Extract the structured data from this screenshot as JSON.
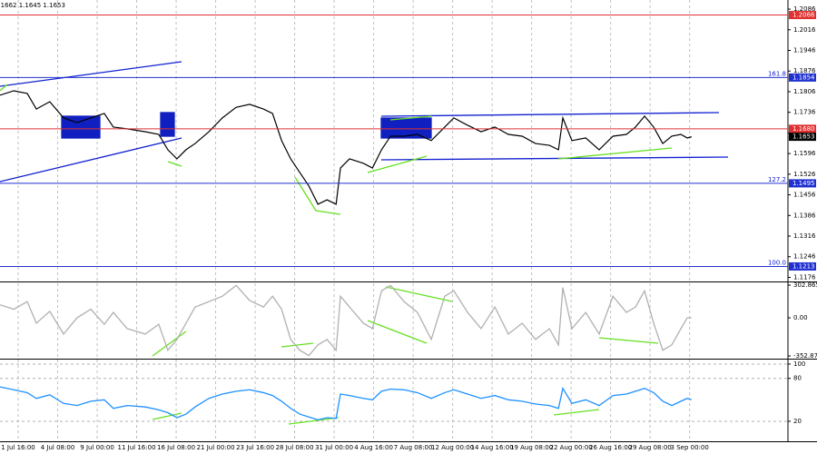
{
  "chart_data": [
    {
      "type": "line",
      "title": "1.1662 1.1645 1.1653",
      "x": [
        -0.46,
        -0.11,
        0.23,
        0.46,
        0.8,
        1.15,
        1.49,
        1.84,
        2.18,
        2.41,
        2.76,
        3.22,
        3.56,
        3.79,
        4.02,
        4.25,
        4.48,
        4.83,
        5.17,
        5.52,
        5.86,
        6.21,
        6.44,
        6.67,
        6.9,
        7.13,
        7.36,
        7.59,
        7.82,
        8.05,
        8.16,
        8.39,
        8.74,
        8.97,
        9.2,
        9.43,
        9.77,
        10.11,
        10.46,
        10.8,
        11.03,
        11.38,
        11.72,
        12.07,
        12.41,
        12.76,
        13.1,
        13.45,
        13.68,
        13.79,
        14.02,
        14.37,
        14.71,
        15.06,
        15.4,
        15.63,
        15.86,
        16.09,
        16.32,
        16.55,
        16.78,
        16.94,
        17.05
      ],
      "series": [
        {
          "color": "#000000",
          "values": [
            1.1794,
            1.1809,
            1.18,
            1.1747,
            1.1772,
            1.1717,
            1.1701,
            1.1717,
            1.1732,
            1.1686,
            1.168,
            1.167,
            1.1661,
            1.1609,
            1.1578,
            1.1609,
            1.163,
            1.167,
            1.1717,
            1.1753,
            1.1763,
            1.1747,
            1.1732,
            1.164,
            1.1578,
            1.1532,
            1.1486,
            1.1424,
            1.1439,
            1.1424,
            1.1547,
            1.1578,
            1.1563,
            1.1547,
            1.1609,
            1.1655,
            1.1655,
            1.1661,
            1.164,
            1.1686,
            1.1717,
            1.1692,
            1.167,
            1.1686,
            1.1661,
            1.1655,
            1.163,
            1.1624,
            1.1609,
            1.1717,
            1.164,
            1.1649,
            1.1609,
            1.1655,
            1.1661,
            1.1686,
            1.1723,
            1.1686,
            1.163,
            1.1655,
            1.1661,
            1.1649,
            1.1653
          ]
        }
      ],
      "xlim": [
        -0.46,
        19.49
      ],
      "ylim": [
        1.1162,
        1.2117
      ],
      "yticks": [
        1.2086,
        1.2016,
        1.1946,
        1.1876,
        1.1806,
        1.1736,
        1.1666,
        1.1596,
        1.1526,
        1.1456,
        1.1386,
        1.1316,
        1.1246,
        1.1176
      ],
      "levels": [
        {
          "value": 1.2066,
          "label": "1.2066",
          "color": "#e03030"
        },
        {
          "value": 1.1854,
          "label": "1.1854",
          "color": "#2030d0",
          "fib_label": "161.8"
        },
        {
          "value": 1.168,
          "label": "1.1680",
          "color": "#e03030"
        },
        {
          "value": 1.1653,
          "label": "1.1653",
          "color": "#000000"
        },
        {
          "value": 1.1495,
          "label": "1.1495",
          "color": "#2030d0",
          "fib_label": "127.2"
        },
        {
          "value": 1.1213,
          "label": "1.1213",
          "color": "#2030d0",
          "fib_label": "100.0"
        }
      ]
    },
    {
      "type": "line",
      "x": [
        -0.46,
        -0.11,
        0.23,
        0.46,
        0.8,
        1.15,
        1.49,
        1.84,
        2.18,
        2.41,
        2.76,
        3.22,
        3.56,
        3.79,
        4.02,
        4.25,
        4.48,
        4.83,
        5.17,
        5.52,
        5.86,
        6.21,
        6.44,
        6.67,
        6.9,
        7.13,
        7.36,
        7.59,
        7.82,
        8.05,
        8.16,
        8.39,
        8.74,
        8.97,
        9.2,
        9.43,
        9.77,
        10.11,
        10.46,
        10.8,
        11.03,
        11.38,
        11.72,
        12.07,
        12.41,
        12.76,
        13.1,
        13.45,
        13.68,
        13.79,
        14.02,
        14.37,
        14.71,
        15.06,
        15.4,
        15.63,
        15.86,
        16.09,
        16.32,
        16.55,
        16.78,
        16.94,
        17.05
      ],
      "series": [
        {
          "color": "#b0b0b0",
          "values": [
            120,
            80,
            150,
            -50,
            60,
            -150,
            0,
            80,
            -60,
            50,
            -100,
            -150,
            -60,
            -300,
            -200,
            -50,
            100,
            150,
            200,
            300,
            160,
            100,
            200,
            80,
            -200,
            -300,
            -350,
            -250,
            -200,
            -300,
            200,
            100,
            -50,
            -100,
            250,
            300,
            150,
            50,
            -200,
            200,
            250,
            50,
            -100,
            100,
            -150,
            -50,
            -200,
            -100,
            -250,
            280,
            -100,
            50,
            -150,
            200,
            50,
            100,
            250,
            -50,
            -300,
            -250,
            -100,
            0,
            0
          ]
        }
      ],
      "xlim": [
        -0.46,
        19.49
      ],
      "ylim": [
        -378,
        328
      ],
      "yticks": [
        302.8654,
        {
          "value": 0,
          "label": "0.00"
        },
        -352.872
      ]
    },
    {
      "type": "line",
      "x": [
        -0.46,
        -0.11,
        0.23,
        0.46,
        0.8,
        1.15,
        1.49,
        1.84,
        2.18,
        2.41,
        2.76,
        3.22,
        3.56,
        3.79,
        4.02,
        4.25,
        4.48,
        4.83,
        5.17,
        5.52,
        5.86,
        6.21,
        6.44,
        6.67,
        6.9,
        7.13,
        7.36,
        7.59,
        7.82,
        8.05,
        8.16,
        8.39,
        8.74,
        8.97,
        9.2,
        9.43,
        9.77,
        10.11,
        10.46,
        10.8,
        11.03,
        11.38,
        11.72,
        12.07,
        12.41,
        12.76,
        13.1,
        13.45,
        13.68,
        13.79,
        14.02,
        14.37,
        14.71,
        15.06,
        15.4,
        15.63,
        15.86,
        16.09,
        16.32,
        16.55,
        16.78,
        16.94,
        17.05
      ],
      "series": [
        {
          "color": "#1e90ff",
          "values": [
            68,
            64,
            60,
            52,
            57,
            45,
            42,
            48,
            50,
            38,
            42,
            40,
            36,
            32,
            25,
            30,
            40,
            52,
            58,
            62,
            64,
            60,
            56,
            48,
            38,
            30,
            26,
            22,
            25,
            24,
            58,
            56,
            52,
            50,
            62,
            65,
            64,
            60,
            52,
            60,
            64,
            58,
            52,
            56,
            50,
            48,
            44,
            42,
            38,
            66,
            45,
            50,
            42,
            56,
            58,
            62,
            66,
            60,
            48,
            42,
            48,
            52,
            50
          ]
        }
      ],
      "xlim": [
        -0.46,
        19.49
      ],
      "ylim": [
        -8,
        105
      ],
      "yticks": [
        100,
        80,
        20
      ],
      "grid": true,
      "xticks": [
        {
          "value": 0,
          "label": "1 Jul 16:00"
        },
        {
          "value": 1,
          "label": "4 Jul 08:00"
        },
        {
          "value": 2,
          "label": "9 Jul 00:00"
        },
        {
          "value": 3,
          "label": "11 Jul 16:00"
        },
        {
          "value": 4,
          "label": "16 Jul 08:00"
        },
        {
          "value": 5,
          "label": "21 Jul 00:00"
        },
        {
          "value": 6,
          "label": "23 Jul 16:00"
        },
        {
          "value": 7,
          "label": "28 Jul 08:00"
        },
        {
          "value": 8,
          "label": "31 Jul 00:00"
        },
        {
          "value": 9,
          "label": "4 Aug 16:00"
        },
        {
          "value": 10,
          "label": "7 Aug 08:00"
        },
        {
          "value": 11,
          "label": "12 Aug 00:00"
        },
        {
          "value": 12,
          "label": "14 Aug 16:00"
        },
        {
          "value": 13,
          "label": "19 Aug 08:00"
        },
        {
          "value": 14,
          "label": "22 Aug 00:00"
        },
        {
          "value": 15,
          "label": "26 Aug 16:00"
        },
        {
          "value": 16,
          "label": "29 Aug 08:00"
        },
        {
          "value": 17,
          "label": "3 Sep 00:00"
        }
      ]
    }
  ]
}
